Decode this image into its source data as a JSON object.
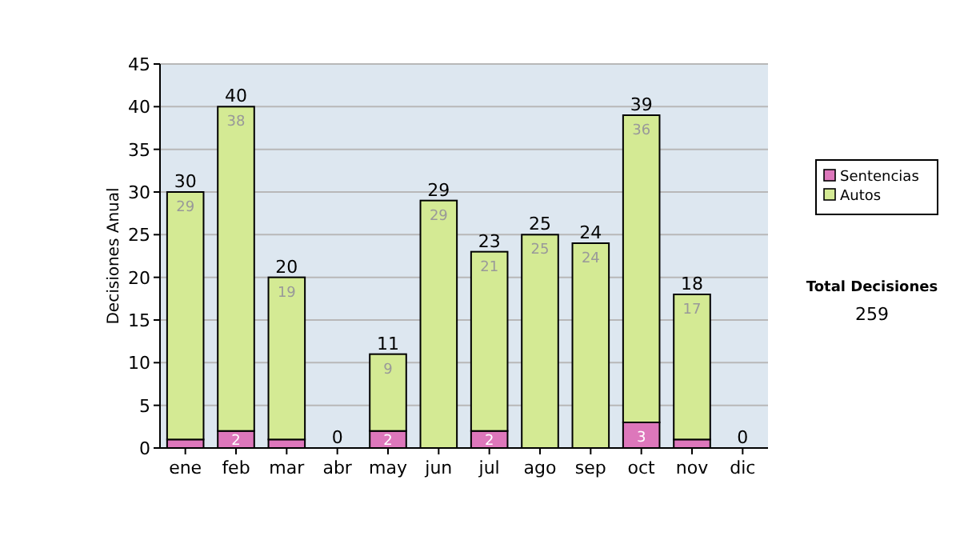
{
  "chart_data": {
    "type": "bar",
    "stacked": true,
    "ylabel": "Decisiones Anual",
    "categories": [
      "ene",
      "feb",
      "mar",
      "abr",
      "may",
      "jun",
      "jul",
      "ago",
      "sep",
      "oct",
      "nov",
      "dic"
    ],
    "series": [
      {
        "name": "Sentencias",
        "color": "#dd77bb",
        "values": [
          1,
          2,
          1,
          0,
          2,
          0,
          2,
          0,
          0,
          3,
          1,
          0
        ],
        "value_labels": [
          null,
          "2",
          null,
          null,
          "2",
          null,
          "2",
          null,
          null,
          "3",
          null,
          null
        ]
      },
      {
        "name": "Autos",
        "color": "#d4ea94",
        "values": [
          29,
          38,
          19,
          0,
          9,
          29,
          21,
          25,
          24,
          36,
          17,
          0
        ],
        "value_labels": [
          "29",
          "38",
          "19",
          null,
          "9",
          "29",
          "21",
          "25",
          "24",
          "36",
          "17",
          null
        ]
      }
    ],
    "totals": [
      "30",
      "40",
      "20",
      "0",
      "11",
      "29",
      "23",
      "25",
      "24",
      "39",
      "18",
      "0"
    ],
    "ylim": [
      0,
      45
    ],
    "yticks": [
      0,
      5,
      10,
      15,
      20,
      25,
      30,
      35,
      40,
      45
    ],
    "grid": "y",
    "legend": "right",
    "annotations": [
      "Total Decisiones",
      "259"
    ]
  }
}
